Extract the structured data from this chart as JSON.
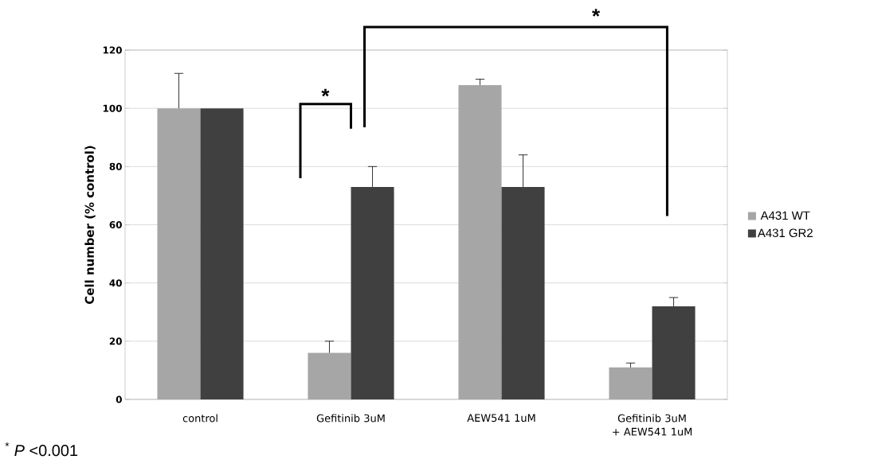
{
  "chart_data": {
    "type": "bar",
    "ylabel": "Cell number (% control)",
    "categories": [
      "control",
      "Gefitinib 3uM",
      "AEW541 1uM",
      "Gefitinib 3uM + AEW541 1uM"
    ],
    "series": [
      {
        "name": "A431 WT",
        "color": "#a6a6a6",
        "values": [
          100,
          16,
          108,
          11
        ],
        "errors": [
          [
            100,
            112
          ],
          [
            16,
            20
          ],
          [
            108,
            110
          ],
          [
            11,
            12.5
          ]
        ]
      },
      {
        "name": "A431 GR2",
        "color": "#404040",
        "values": [
          100,
          73,
          73,
          32
        ],
        "errors": [
          null,
          [
            73,
            80
          ],
          [
            73,
            84
          ],
          [
            32,
            35
          ]
        ]
      }
    ],
    "ylim": [
      0,
      120
    ],
    "yticks": [
      0,
      20,
      40,
      60,
      80,
      100,
      120
    ],
    "grid": "y",
    "legend": "right",
    "annotations": [
      "*",
      "*",
      "$^{*}$ *P* <0.001"
    ]
  }
}
